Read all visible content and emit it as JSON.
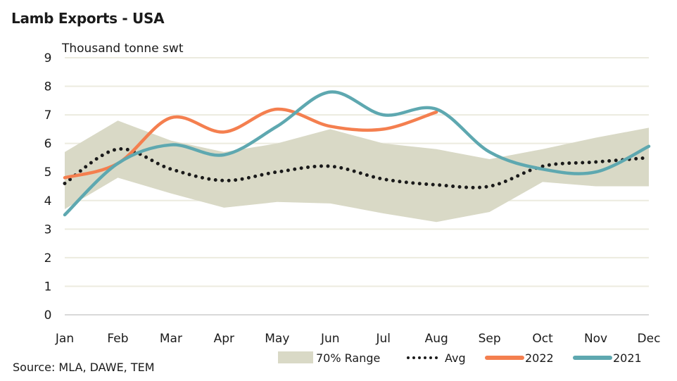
{
  "title": "Lamb Exports - USA",
  "source": "Source: MLA, DAWE, TEM",
  "chart_data": {
    "type": "line",
    "title": "Lamb Exports - USA",
    "ylabel": "Thousand tonne swt",
    "xlabel": "",
    "categories": [
      "Jan",
      "Feb",
      "Mar",
      "Apr",
      "May",
      "Jun",
      "Jul",
      "Aug",
      "Sep",
      "Oct",
      "Nov",
      "Dec"
    ],
    "ylim": [
      0,
      9
    ],
    "yticks": [
      0,
      1,
      2,
      3,
      4,
      5,
      6,
      7,
      8,
      9
    ],
    "grid": true,
    "legend_position": "bottom-right",
    "range": {
      "name": "70% Range",
      "color": "#d9d9c6",
      "upper": [
        5.7,
        6.8,
        6.1,
        5.7,
        6.0,
        6.5,
        6.0,
        5.8,
        5.45,
        5.8,
        6.2,
        6.55
      ],
      "lower": [
        3.7,
        4.8,
        4.25,
        3.75,
        3.95,
        3.9,
        3.55,
        3.25,
        3.6,
        4.65,
        4.5,
        4.5
      ]
    },
    "series": [
      {
        "name": "Avg",
        "style": "dotted",
        "color": "#1a1a1a",
        "values": [
          4.6,
          5.8,
          5.1,
          4.7,
          5.0,
          5.2,
          4.75,
          4.55,
          4.5,
          5.2,
          5.35,
          5.5
        ]
      },
      {
        "name": "2022",
        "style": "solid",
        "color": "#f47f4f",
        "values": [
          4.8,
          5.3,
          6.9,
          6.4,
          7.2,
          6.6,
          6.5,
          7.1,
          null,
          null,
          null,
          null
        ]
      },
      {
        "name": "2021",
        "style": "solid",
        "color": "#5ea8b0",
        "values": [
          3.5,
          5.3,
          5.95,
          5.6,
          6.6,
          7.8,
          7.0,
          7.2,
          5.7,
          5.1,
          5.0,
          5.9
        ]
      }
    ]
  }
}
